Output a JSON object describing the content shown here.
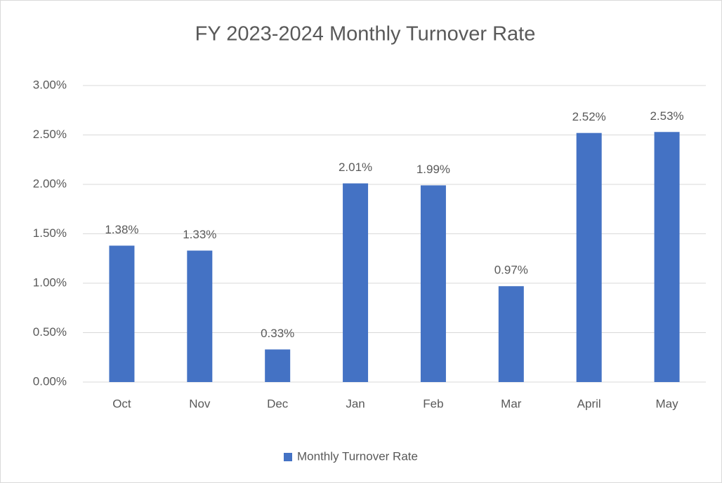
{
  "chart_data": {
    "type": "bar",
    "title": "FY 2023-2024 Monthly Turnover Rate",
    "categories": [
      "Oct",
      "Nov",
      "Dec",
      "Jan",
      "Feb",
      "Mar",
      "April",
      "May"
    ],
    "series": [
      {
        "name": "Monthly Turnover Rate",
        "color": "#4472c4",
        "values": [
          1.38,
          1.33,
          0.33,
          2.01,
          1.99,
          0.97,
          2.52,
          2.53
        ],
        "value_labels": [
          "1.38%",
          "1.33%",
          "0.33%",
          "2.01%",
          "1.99%",
          "0.97%",
          "2.52%",
          "2.53%"
        ]
      }
    ],
    "ylim": [
      0,
      3
    ],
    "yticks": [
      {
        "value": 0,
        "label": "0.00%"
      },
      {
        "value": 0.5,
        "label": "0.50%"
      },
      {
        "value": 1,
        "label": "1.00%"
      },
      {
        "value": 1.5,
        "label": "1.50%"
      },
      {
        "value": 2,
        "label": "2.00%"
      },
      {
        "value": 2.5,
        "label": "2.50%"
      },
      {
        "value": 3,
        "label": "3.00%"
      }
    ],
    "grid": true,
    "legend": "bottom"
  }
}
